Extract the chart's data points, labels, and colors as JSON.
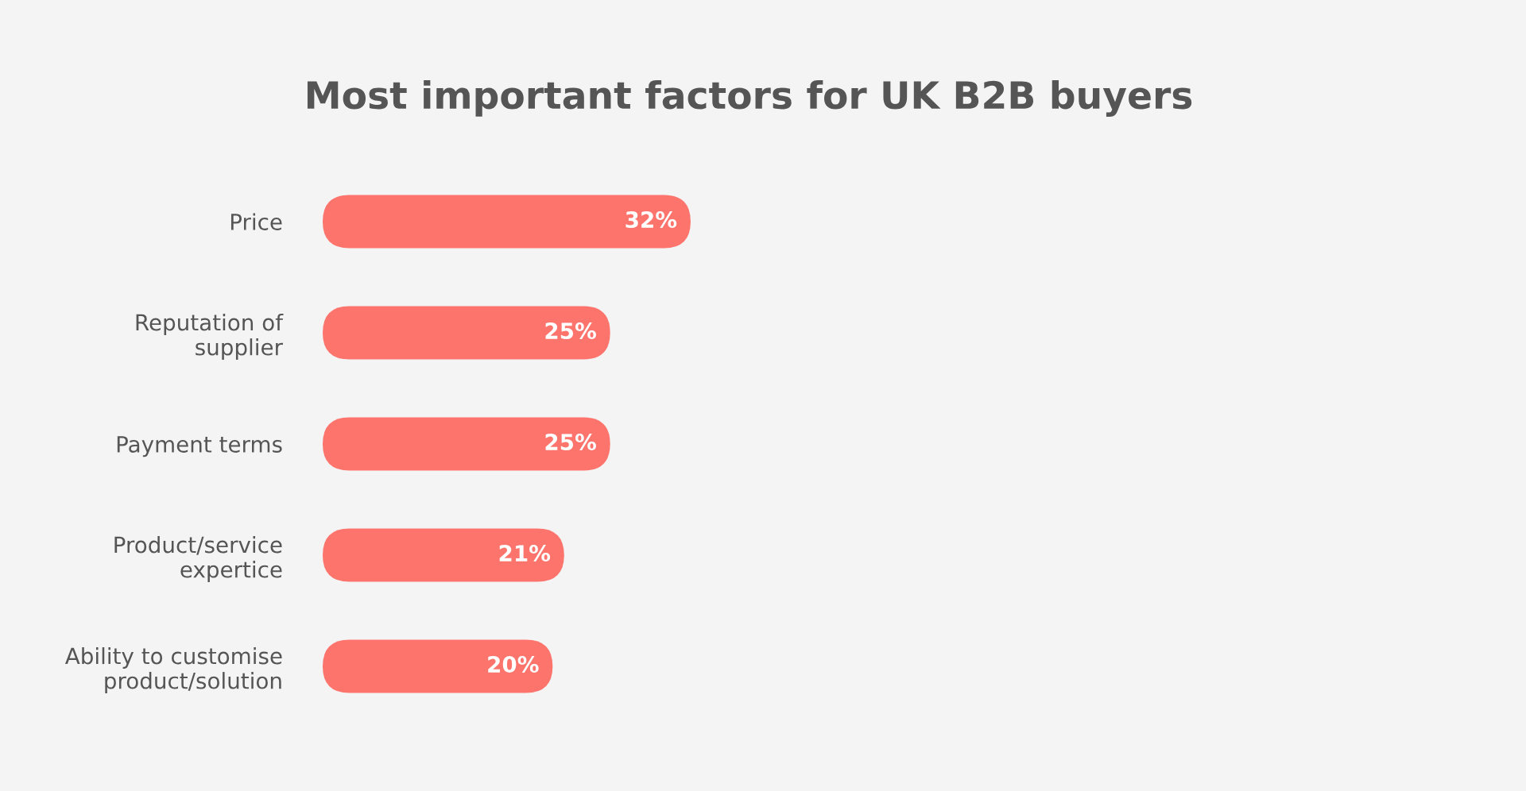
{
  "chart_data": {
    "type": "bar",
    "orientation": "horizontal",
    "title": "Most important factors for UK B2B buyers",
    "categories": [
      "Price",
      "Reputation of\nsupplier",
      "Payment terms",
      "Product/service\nexpertice",
      "Ability to customise\nproduct/solution"
    ],
    "values": [
      32,
      25,
      25,
      21,
      20
    ],
    "value_labels": [
      "32%",
      "25%",
      "25%",
      "21%",
      "20%"
    ],
    "color": "#fd746c",
    "grid": false,
    "legend": false
  }
}
